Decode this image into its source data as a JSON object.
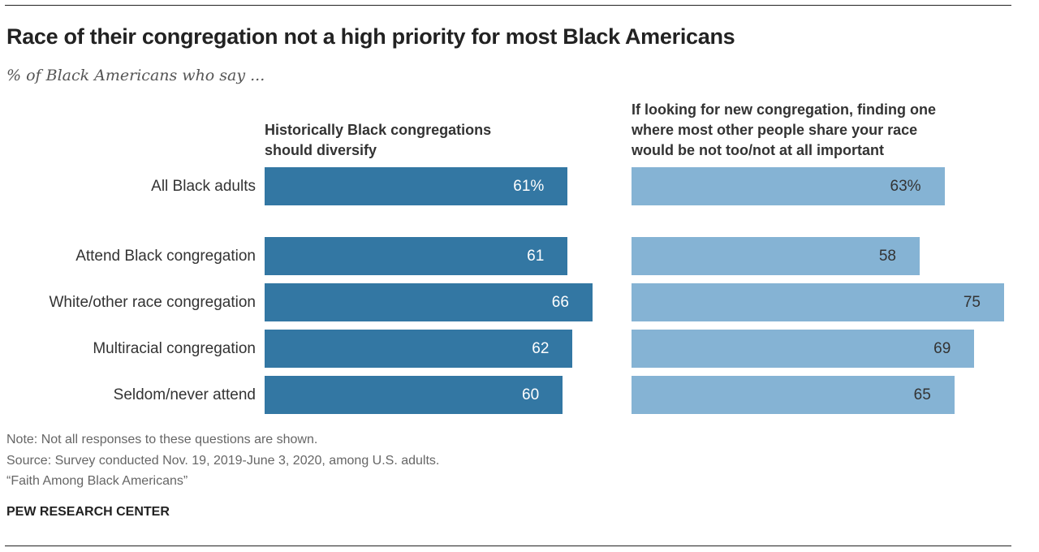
{
  "title": "Race of their congregation not a high priority for most Black Americans",
  "subtitle": "% of Black Americans who say ...",
  "chart_data": {
    "type": "bar",
    "orientation": "horizontal",
    "categories": [
      "All Black adults",
      "Attend Black congregation",
      "White/other race congregation",
      "Multiracial congregation",
      "Seldom/never attend"
    ],
    "value_labels_first_row_suffix": "%",
    "series": [
      {
        "name": "Historically Black congregations should diversify",
        "values": [
          61,
          61,
          66,
          62,
          60
        ],
        "color": "#3377a3"
      },
      {
        "name": "If looking for new congregation, finding one where most other people share your race would be not too/not at all important",
        "values": [
          63,
          58,
          75,
          69,
          65
        ],
        "color": "#85b3d4"
      }
    ],
    "xlim": [
      0,
      100
    ],
    "grid": false
  },
  "column_headers": [
    [
      "Historically Black congregations",
      "should diversify"
    ],
    [
      "If looking for new congregation, finding one",
      "where most other people share your race",
      "would be not too/not at all important"
    ]
  ],
  "notes": {
    "note": "Note: Not all responses to these questions are shown.",
    "source": "Source: Survey conducted Nov. 19, 2019-June 3, 2020, among U.S. adults.",
    "report": "“Faith Among Black Americans”"
  },
  "brand": "PEW RESEARCH CENTER"
}
